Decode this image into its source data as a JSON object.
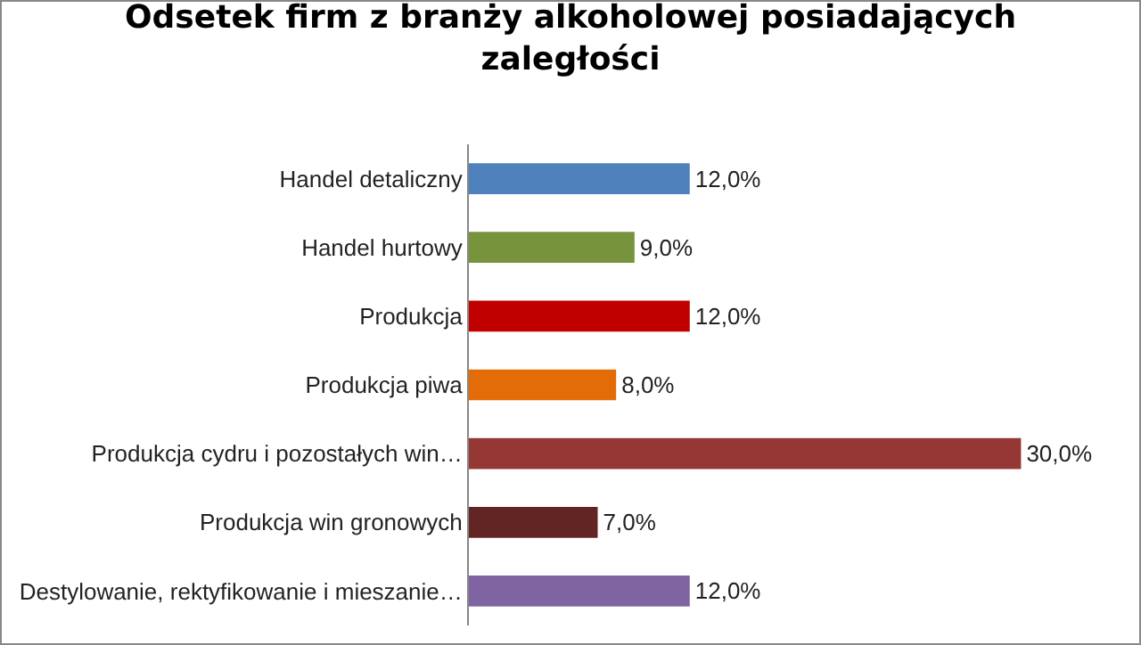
{
  "chart_data": {
    "type": "bar",
    "orientation": "horizontal",
    "title": "Odsetek firm z branży alkoholowej posiadających zaległości",
    "categories": [
      "Handel detaliczny",
      "Handel hurtowy",
      "Produkcja",
      "Produkcja piwa",
      "Produkcja cydru i pozostałych win…",
      "Produkcja win gronowych",
      "Destylowanie, rektyfikowanie i mieszanie…"
    ],
    "values": [
      12,
      9,
      12,
      8,
      30,
      7,
      12
    ],
    "colors": [
      "#4f81bd",
      "#77933c",
      "#c00000",
      "#e36c09",
      "#953735",
      "#632523",
      "#8064a2"
    ],
    "value_labels": [
      "12,0%",
      "9,0%",
      "12,0%",
      "8,0%",
      "30,0%",
      "7,0%",
      "12,0%"
    ],
    "grid": false,
    "legend": false
  }
}
